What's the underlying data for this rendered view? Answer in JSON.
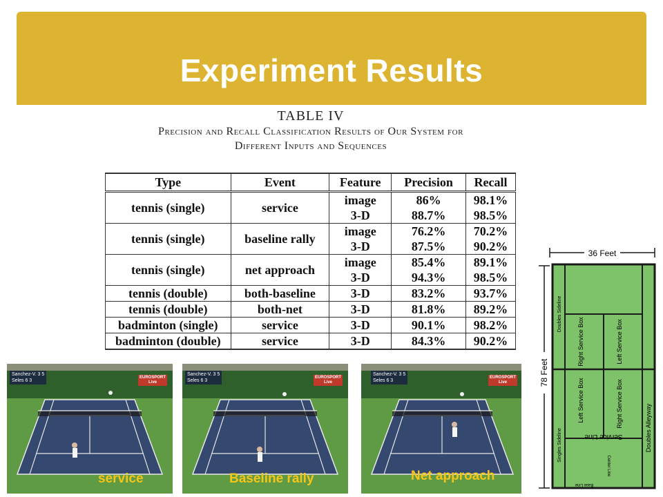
{
  "slide": {
    "title": "Experiment Results"
  },
  "table": {
    "caption_number": "TABLE IV",
    "caption_line1": "Precision and Recall Classification Results of Our System for",
    "caption_line2": "Different Inputs and Sequences",
    "columns": [
      "Type",
      "Event",
      "Feature",
      "Precision",
      "Recall"
    ],
    "rows": [
      {
        "type": "tennis (single)",
        "event": "service",
        "features": [
          "image",
          "3-D"
        ],
        "precision": [
          "86%",
          "88.7%"
        ],
        "recall": [
          "98.1%",
          "98.5%"
        ]
      },
      {
        "type": "tennis (single)",
        "event": "baseline rally",
        "features": [
          "image",
          "3-D"
        ],
        "precision": [
          "76.2%",
          "87.5%"
        ],
        "recall": [
          "70.2%",
          "90.2%"
        ]
      },
      {
        "type": "tennis (single)",
        "event": "net approach",
        "features": [
          "image",
          "3-D"
        ],
        "precision": [
          "85.4%",
          "94.3%"
        ],
        "recall": [
          "89.1%",
          "98.5%"
        ]
      },
      {
        "type": "tennis (double)",
        "event": "both-baseline",
        "features": [
          "3-D"
        ],
        "precision": [
          "83.2%"
        ],
        "recall": [
          "93.7%"
        ]
      },
      {
        "type": "tennis (double)",
        "event": "both-net",
        "features": [
          "3-D"
        ],
        "precision": [
          "81.8%"
        ],
        "recall": [
          "89.2%"
        ]
      },
      {
        "type": "badminton (single)",
        "event": "service",
        "features": [
          "3-D"
        ],
        "precision": [
          "90.1%"
        ],
        "recall": [
          "98.2%"
        ]
      },
      {
        "type": "badminton (double)",
        "event": "service",
        "features": [
          "3-D"
        ],
        "precision": [
          "84.3%"
        ],
        "recall": [
          "90.2%"
        ]
      }
    ]
  },
  "photos": [
    {
      "label": "service",
      "score_p1": "Sanchez-V.",
      "score_p2": "Seles",
      "score_v1": "3 5",
      "score_v2": "6 3",
      "logo": "EUROSPORT",
      "logo_sub": "Live"
    },
    {
      "label": "Baseline rally",
      "score_p1": "Sanchez-V.",
      "score_p2": "Seles",
      "score_v1": "3 5",
      "score_v2": "6 3",
      "logo": "EUROSPORT",
      "logo_sub": "Live"
    },
    {
      "label": "Net approach",
      "score_p1": "Sanchez-V.",
      "score_p2": "Seles",
      "score_v1": "3 5",
      "score_v2": "6 3",
      "logo": "EUROSPORT",
      "logo_sub": "Live"
    }
  ],
  "court_diagram": {
    "width_label": "36 Feet",
    "length_label": "78 Feet",
    "doubles_sideline": "Doubles Sideline",
    "right_service_box_top": "Right Service Box",
    "left_service_box_top": "Left Service Box",
    "left_service_box_bottom": "Left Service Box",
    "right_service_box_bottom": "Right Service Box",
    "singles_sideline": "Singles Sideline",
    "service_line": "Service Line",
    "doubles_alleyway": "Doubles Alleyway",
    "center_line": "Center Line",
    "base_line": "Base Line",
    "colors": {
      "court": "#7ec26a",
      "lines": "#1a1a1a"
    }
  },
  "colors": {
    "title_bar": "#ddb432",
    "title_text": "#ffffff",
    "photo_label": "#f5c518"
  }
}
